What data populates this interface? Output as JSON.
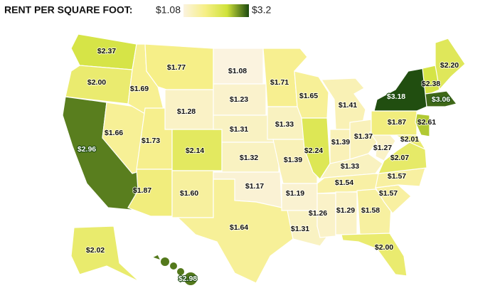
{
  "chart_data": {
    "type": "map",
    "legend": {
      "title": "RENT PER SQUARE FOOT:",
      "ticks": [
        {
          "value": 1.08,
          "label": "$1.08"
        },
        {
          "value": 3.2,
          "label": "$3.2"
        }
      ],
      "colors": [
        "#fbf3df",
        "#f6ef86",
        "#cfe23a",
        "#1c4a0f"
      ]
    },
    "values": [
      2.37,
      2.0,
      2.96,
      1.66,
      1.69,
      1.77,
      1.28,
      1.73,
      2.14,
      1.87,
      1.6,
      1.08,
      1.23,
      1.31,
      1.32,
      1.17,
      1.64,
      1.71,
      1.33,
      1.39,
      1.19,
      1.31,
      1.65,
      2.24,
      1.41,
      1.39,
      1.37,
      1.33,
      1.54,
      1.26,
      1.29,
      1.58,
      2.0,
      1.57,
      1.57,
      2.07,
      1.27,
      1.87,
      3.18,
      2.2,
      2.38,
      3.06,
      2.61,
      2.01,
      2.02,
      2.98
    ],
    "value_labels": [
      "$2.37",
      "$2.00",
      "$2.96",
      "$1.66",
      "$1.69",
      "$1.77",
      "$1.28",
      "$1.73",
      "$2.14",
      "$1.87",
      "$1.60",
      "$1.08",
      "$1.23",
      "$1.31",
      "$1.32",
      "$1.17",
      "$1.64",
      "$1.71",
      "$1.33",
      "$1.39",
      "$1.19",
      "$1.31",
      "$1.65",
      "$2.24",
      "$1.41",
      "$1.39",
      "$1.37",
      "$1.33",
      "$1.54",
      "$1.26",
      "$1.29",
      "$1.58",
      "$2.00",
      "$1.57",
      "$1.57",
      "$2.07",
      "$1.27",
      "$1.87",
      "$3.18",
      "$2.20",
      "$2.38",
      "$3.06",
      "$2.61",
      "$2.01",
      "$2.02",
      "$2.98"
    ]
  }
}
